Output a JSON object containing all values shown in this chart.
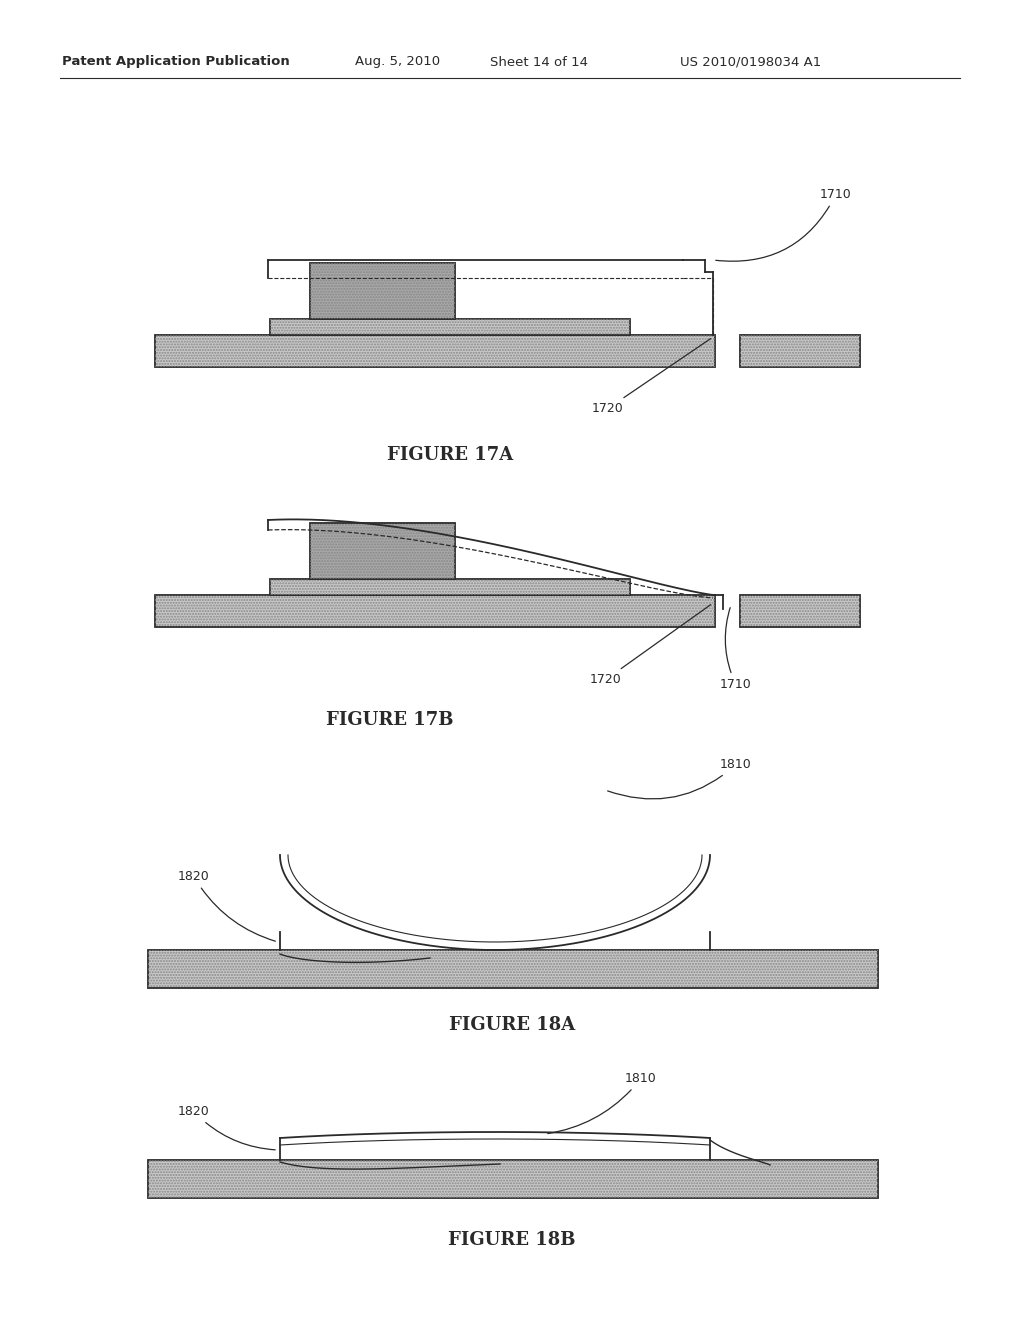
{
  "header_text": "Patent Application Publication",
  "header_date": "Aug. 5, 2010",
  "header_sheet": "Sheet 14 of 14",
  "header_patent": "US 2010/0198034 A1",
  "fig17a_label": "FIGURE 17A",
  "fig17b_label": "FIGURE 17B",
  "fig18a_label": "FIGURE 18A",
  "fig18b_label": "FIGURE 18B",
  "label_1710": "1710",
  "label_1720": "1720",
  "label_1810": "1810",
  "label_1820": "1820",
  "fill_gray": "#c8c8c8",
  "fill_dark": "#a8a8a8",
  "line_color": "#2a2a2a",
  "bg_color": "#ffffff"
}
